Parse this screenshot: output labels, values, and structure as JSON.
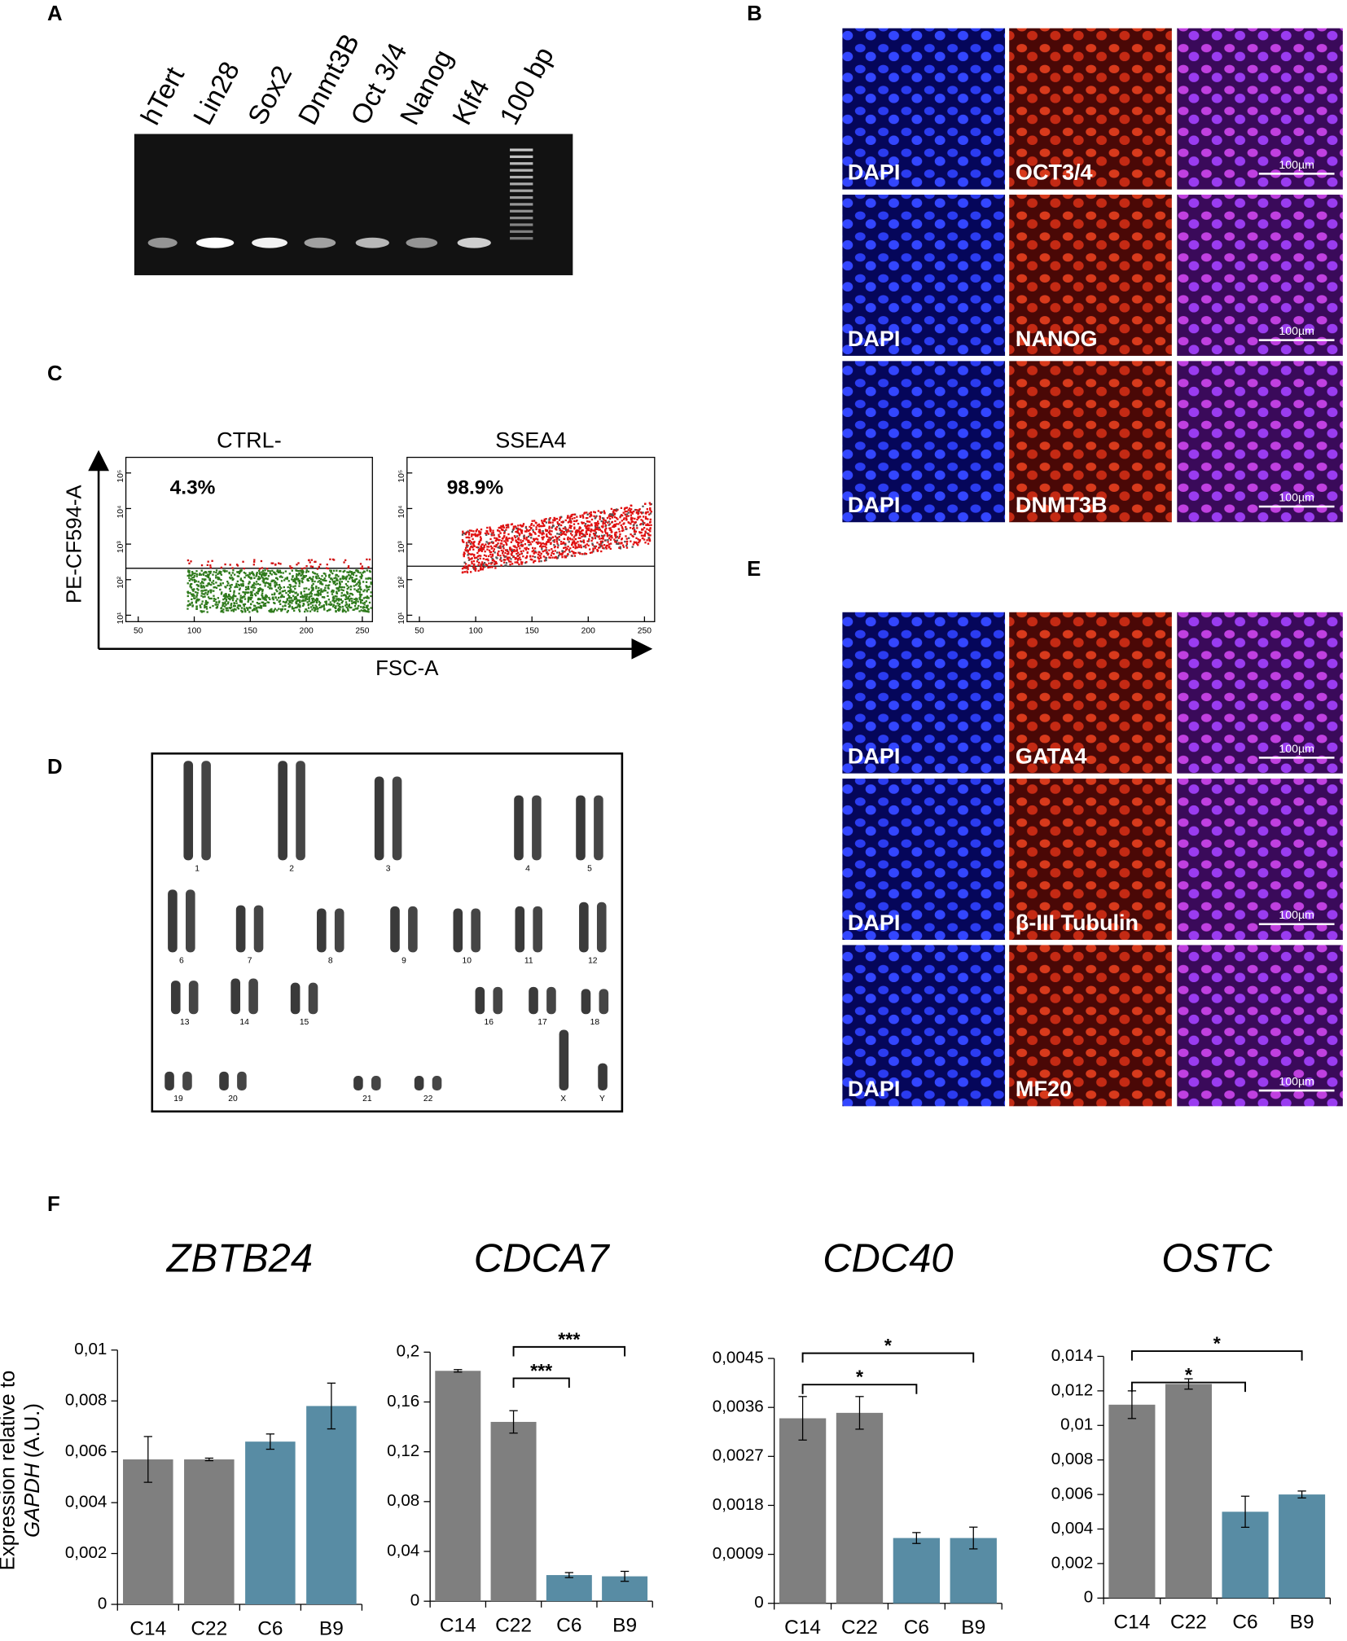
{
  "panel_labels": [
    "A",
    "B",
    "C",
    "D",
    "E",
    "F"
  ],
  "gel": {
    "lanes": [
      "hTert",
      "Lin28",
      "Sox2",
      "Dnmt3B",
      "Oct 3/4",
      "Nanog",
      "Klf4",
      "100 bp"
    ]
  },
  "if_b": {
    "rows": [
      {
        "dapi": "DAPI",
        "marker": "OCT3/4",
        "scale": "100µm"
      },
      {
        "dapi": "DAPI",
        "marker": "NANOG",
        "scale": "100µm"
      },
      {
        "dapi": "DAPI",
        "marker": "DNMT3B",
        "scale": "100µm"
      }
    ]
  },
  "if_e": {
    "rows": [
      {
        "dapi": "DAPI",
        "marker": "GATA4",
        "scale": "100µm"
      },
      {
        "dapi": "DAPI",
        "marker": "β-III Tubulin",
        "scale": "100µm"
      },
      {
        "dapi": "DAPI",
        "marker": "MF20",
        "scale": "100µm"
      }
    ]
  },
  "flow": {
    "ylabel": "PE-CF594-A",
    "xlabel": "FSC-A",
    "plots": [
      {
        "title": "CTRL-",
        "percent": "4.3%"
      },
      {
        "title": "SSEA4",
        "percent": "98.9%"
      }
    ],
    "xlim": [
      39,
      259
    ],
    "xticks": [
      50,
      100,
      150,
      200,
      250
    ],
    "yscale": "log",
    "ylim": [
      6.6,
      275000
    ],
    "yticks": [
      {
        "value": 10,
        "label": "10¹"
      },
      {
        "value": 100,
        "label": "10²"
      },
      {
        "value": 1000,
        "label": "10³"
      },
      {
        "value": 10000,
        "label": "10⁴"
      },
      {
        "value": 100000,
        "label": "10⁵"
      }
    ]
  },
  "karyotype": {
    "labels": [
      "1",
      "2",
      "3",
      "4",
      "5",
      "6",
      "7",
      "8",
      "9",
      "10",
      "11",
      "12",
      "13",
      "14",
      "15",
      "16",
      "17",
      "18",
      "19",
      "20",
      "21",
      "22",
      "X",
      "Y"
    ]
  },
  "ylabel": "Expression relative to",
  "ylabel_italic": "GAPDH",
  "ylabel_rest": "(A.U.)",
  "chart_data": [
    {
      "type": "bar",
      "title": "ZBTB24",
      "categories": [
        "C14",
        "C22",
        "C6",
        "B9"
      ],
      "values": [
        0.0057,
        0.0057,
        0.0064,
        0.0078
      ],
      "errors": [
        0.0009,
        5e-05,
        0.0003,
        0.0009
      ],
      "colors": [
        "#7f7f7f",
        "#7f7f7f",
        "#588ca4",
        "#588ca4"
      ],
      "ylim": [
        0,
        0.01
      ],
      "yticks": [
        0,
        {
          "value": 0.002,
          "label": "0,002"
        },
        {
          "value": 0.004,
          "label": "0,004"
        },
        {
          "value": 0.006,
          "label": "0,006"
        },
        {
          "value": 0.008,
          "label": "0,008"
        },
        {
          "value": 0.01,
          "label": "0,01"
        }
      ],
      "brackets": []
    },
    {
      "type": "bar",
      "title": "CDCA7",
      "categories": [
        "C14",
        "C22",
        "C6",
        "B9"
      ],
      "values": [
        0.185,
        0.144,
        0.021,
        0.02
      ],
      "errors": [
        0.001,
        0.009,
        0.002,
        0.004
      ],
      "colors": [
        "#7f7f7f",
        "#7f7f7f",
        "#588ca4",
        "#588ca4"
      ],
      "ylim": [
        0,
        0.2
      ],
      "yticks": [
        0,
        {
          "value": 0.04,
          "label": "0,04"
        },
        {
          "value": 0.08,
          "label": "0,08"
        },
        {
          "value": 0.12,
          "label": "0,12"
        },
        {
          "value": 0.16,
          "label": "0,16"
        },
        {
          "value": 0.2,
          "label": "0,2"
        }
      ],
      "brackets": [
        {
          "from": "C22",
          "to": "C6",
          "label": "***"
        },
        {
          "from": "C22",
          "to": "B9",
          "label": "***"
        }
      ]
    },
    {
      "type": "bar",
      "title": "CDC40",
      "categories": [
        "C14",
        "C22",
        "C6",
        "B9"
      ],
      "values": [
        0.0034,
        0.0035,
        0.0012,
        0.0012
      ],
      "errors": [
        0.0004,
        0.0003,
        0.0001,
        0.0002
      ],
      "colors": [
        "#7f7f7f",
        "#7f7f7f",
        "#588ca4",
        "#588ca4"
      ],
      "ylim": [
        0,
        0.0045
      ],
      "yticks": [
        0,
        {
          "value": 0.0009,
          "label": "0,0009"
        },
        {
          "value": 0.0018,
          "label": "0,0018"
        },
        {
          "value": 0.0027,
          "label": "0,0027"
        },
        {
          "value": 0.0036,
          "label": "0,0036"
        },
        {
          "value": 0.0045,
          "label": "0,0045"
        }
      ],
      "brackets": [
        {
          "from": "C14",
          "to": "C6",
          "label": "*"
        },
        {
          "from": "C14",
          "to": "B9",
          "label": "*"
        }
      ]
    },
    {
      "type": "bar",
      "title": "OSTC",
      "categories": [
        "C14",
        "C22",
        "C6",
        "B9"
      ],
      "values": [
        0.0112,
        0.0124,
        0.005,
        0.006
      ],
      "errors": [
        0.0008,
        0.0003,
        0.0009,
        0.0002
      ],
      "colors": [
        "#7f7f7f",
        "#7f7f7f",
        "#588ca4",
        "#588ca4"
      ],
      "ylim": [
        0,
        0.014
      ],
      "yticks": [
        0,
        {
          "value": 0.002,
          "label": "0,002"
        },
        {
          "value": 0.004,
          "label": "0,004"
        },
        {
          "value": 0.006,
          "label": "0,006"
        },
        {
          "value": 0.008,
          "label": "0,008"
        },
        {
          "value": 0.01,
          "label": "0,01"
        },
        {
          "value": 0.012,
          "label": "0,012"
        },
        {
          "value": 0.014,
          "label": "0,014"
        }
      ],
      "brackets": [
        {
          "from": "C14",
          "to": "C6",
          "label": "*"
        },
        {
          "from": "C14",
          "to": "B9",
          "label": "*"
        }
      ]
    }
  ]
}
